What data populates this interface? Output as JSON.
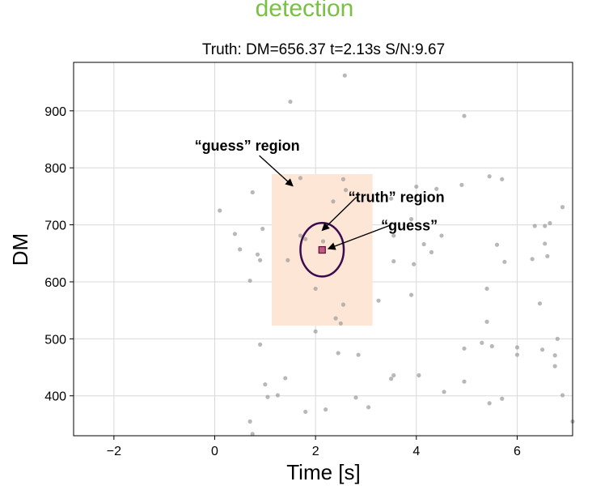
{
  "heading": "detection",
  "chart_data": {
    "type": "scatter",
    "title": "Truth: DM=656.37  t=2.13s  S/N:9.67",
    "xlabel": "Time [s]",
    "ylabel": "DM",
    "xlim": [
      -2.8,
      7.1
    ],
    "ylim": [
      330,
      985
    ],
    "xticks": [
      -2,
      0,
      2,
      4,
      6
    ],
    "yticks": [
      400,
      500,
      600,
      700,
      800,
      900
    ],
    "grid": true,
    "points": [
      [
        2.58,
        962
      ],
      [
        1.5,
        916
      ],
      [
        4.95,
        891
      ],
      [
        1.7,
        782
      ],
      [
        2.55,
        780
      ],
      [
        5.45,
        785
      ],
      [
        5.7,
        780
      ],
      [
        0.75,
        757
      ],
      [
        4.9,
        770
      ],
      [
        4.4,
        763
      ],
      [
        4.0,
        767
      ],
      [
        2.6,
        761
      ],
      [
        3.5,
        746
      ],
      [
        2.35,
        741
      ],
      [
        0.1,
        725
      ],
      [
        6.9,
        731
      ],
      [
        6.35,
        698
      ],
      [
        6.55,
        698
      ],
      [
        6.65,
        703
      ],
      [
        3.9,
        710
      ],
      [
        0.4,
        684
      ],
      [
        0.95,
        693
      ],
      [
        1.7,
        681
      ],
      [
        1.8,
        675
      ],
      [
        4.5,
        681
      ],
      [
        4.15,
        666
      ],
      [
        2.15,
        671
      ],
      [
        3.55,
        681
      ],
      [
        0.5,
        657
      ],
      [
        5.6,
        665
      ],
      [
        4.3,
        652
      ],
      [
        6.55,
        667
      ],
      [
        6.6,
        645
      ],
      [
        6.3,
        640
      ],
      [
        0.85,
        648
      ],
      [
        0.9,
        638
      ],
      [
        1.45,
        638
      ],
      [
        3.55,
        636
      ],
      [
        3.95,
        631
      ],
      [
        5.75,
        635
      ],
      [
        0.7,
        602
      ],
      [
        2.0,
        588
      ],
      [
        5.4,
        588
      ],
      [
        3.9,
        577
      ],
      [
        3.25,
        567
      ],
      [
        6.45,
        562
      ],
      [
        2.55,
        560
      ],
      [
        2.4,
        536
      ],
      [
        5.4,
        530
      ],
      [
        2.5,
        527
      ],
      [
        2.0,
        513
      ],
      [
        6.8,
        500
      ],
      [
        0.9,
        490
      ],
      [
        5.3,
        493
      ],
      [
        5.5,
        487
      ],
      [
        4.95,
        483
      ],
      [
        6.0,
        485
      ],
      [
        6.5,
        481
      ],
      [
        6.75,
        471
      ],
      [
        6.0,
        472
      ],
      [
        2.45,
        475
      ],
      [
        2.85,
        472
      ],
      [
        6.75,
        452
      ],
      [
        3.55,
        436
      ],
      [
        3.5,
        430
      ],
      [
        4.05,
        436
      ],
      [
        4.95,
        425
      ],
      [
        1.4,
        431
      ],
      [
        1.0,
        420
      ],
      [
        1.05,
        398
      ],
      [
        1.25,
        401
      ],
      [
        2.8,
        397
      ],
      [
        4.55,
        407
      ],
      [
        5.7,
        395
      ],
      [
        5.45,
        387
      ],
      [
        6.9,
        401
      ],
      [
        1.8,
        372
      ],
      [
        2.2,
        376
      ],
      [
        3.05,
        380
      ],
      [
        7.1,
        355
      ],
      [
        0.7,
        355
      ],
      [
        0.75,
        333
      ]
    ],
    "guess_region": {
      "t_min": 1.13,
      "t_max": 3.13,
      "dm_min": 523,
      "dm_max": 789,
      "color": "#fde6d6"
    },
    "truth_region": {
      "t_center": 2.13,
      "dm_center": 656.37,
      "t_halfwidth": 0.43,
      "dm_halfheight": 47,
      "color": "#3d0a4f"
    },
    "guess": {
      "t": 2.13,
      "dm": 656,
      "color": "#c45a84"
    },
    "annotations": [
      {
        "text": "“guess” region",
        "x": -0.4,
        "y": 830,
        "arrow_to": [
          1.55,
          768
        ]
      },
      {
        "text": "“truth” region",
        "x": 2.65,
        "y": 740,
        "arrow_to": [
          2.13,
          690
        ]
      },
      {
        "text": "“guess”",
        "x": 3.3,
        "y": 690,
        "arrow_to": [
          2.25,
          658
        ]
      }
    ]
  }
}
